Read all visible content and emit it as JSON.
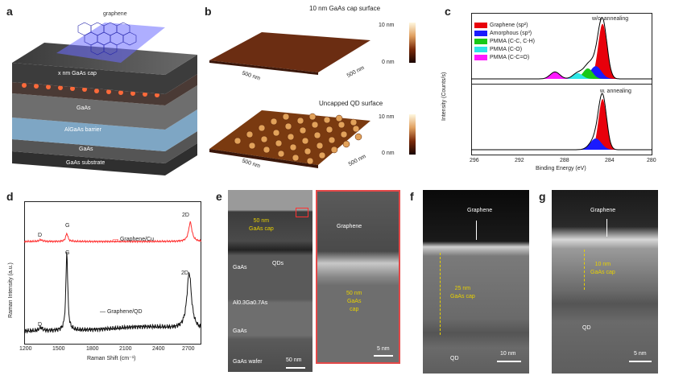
{
  "panels": {
    "a": {
      "label": "a",
      "graphene": "graphene",
      "layers": [
        "x nm GaAs cap",
        "GaAs",
        "AlGaAs barrier",
        "GaAs",
        "GaAs substrate"
      ]
    },
    "b": {
      "label": "b",
      "top_title": "10 nm GaAs cap surface",
      "bottom_title": "Uncapped QD surface",
      "top_scale_max": "10 nm",
      "top_scale_min": "0 nm",
      "bottom_scale_max": "10 nm",
      "bottom_scale_min": "0 nm",
      "axis_label": "500 nm"
    },
    "c": {
      "label": "c",
      "top_title": "w/o. annealing",
      "bottom_title": "w. annealing",
      "ylabel": "Intensity (Counts/s)",
      "xlabel": "Binding Energy (eV)",
      "legend": [
        {
          "name": "Graphene (sp²)",
          "color": "#e8000b"
        },
        {
          "name": "Amorphous (sp³)",
          "color": "#1a1aff"
        },
        {
          "name": "PMMA (C-C, C-H)",
          "color": "#18c918"
        },
        {
          "name": "PMMA (C-O)",
          "color": "#2ee6e6"
        },
        {
          "name": "PMMA (C-C=O)",
          "color": "#ff1aff"
        }
      ]
    },
    "d": {
      "label": "d",
      "ylabel": "Raman Intensity (a.u.)",
      "xlabel": "Raman Shift (cm⁻¹)",
      "series_top": "Graphene/Cu",
      "series_bottom": "Graphene/QD",
      "peak_D": "D",
      "peak_G": "G",
      "peak_2D": "2D"
    },
    "e": {
      "label": "e",
      "cap": "50 nm GaAs cap",
      "cap_l1": "50 nm",
      "cap_l2": "GaAs cap",
      "qds": "QDs",
      "gaas": "GaAs",
      "algaas": "Al0.3Ga0.7As",
      "gaas2": "GaAs",
      "wafer": "GaAs wafer",
      "scale": "50 nm",
      "inset_graphene": "Graphene",
      "inset_cap_l1": "50 nm",
      "inset_cap_l2": "GaAs",
      "inset_cap_l3": "cap",
      "inset_scale": "5 nm"
    },
    "f": {
      "label": "f",
      "graphene": "Graphene",
      "cap_l1": "25 nm",
      "cap_l2": "GaAs cap",
      "qd": "QD",
      "scale": "10 nm"
    },
    "g": {
      "label": "g",
      "graphene": "Graphene",
      "cap_l1": "10 nm",
      "cap_l2": "GaAs cap",
      "qd": "QD",
      "scale": "5 nm"
    }
  },
  "chart_data": [
    {
      "type": "area",
      "title": "w/o. annealing",
      "xlabel": "Binding Energy (eV)",
      "ylabel": "Intensity (Counts/s)",
      "xlim": [
        296,
        280
      ],
      "x_ticks": [
        296,
        292,
        288,
        284,
        280
      ],
      "series": [
        {
          "name": "Graphene (sp²)",
          "peak": 284.4
        },
        {
          "name": "Amorphous (sp³)",
          "peak": 285.0
        },
        {
          "name": "PMMA (C-C, C-H)",
          "peak": 285.6
        },
        {
          "name": "PMMA (C-O)",
          "peak": 286.6
        },
        {
          "name": "PMMA (C-C=O)",
          "peak": 288.5
        }
      ]
    },
    {
      "type": "area",
      "title": "w. annealing",
      "xlabel": "Binding Energy (eV)",
      "xlim": [
        296,
        280
      ],
      "series": [
        {
          "name": "Graphene (sp²)",
          "peak": 284.4
        },
        {
          "name": "Amorphous (sp³)",
          "peak": 285.0
        }
      ]
    },
    {
      "type": "line",
      "xlabel": "Raman Shift (cm⁻¹)",
      "ylabel": "Raman Intensity (a.u.)",
      "xlim": [
        1200,
        2800
      ],
      "x_ticks": [
        1200,
        1500,
        1800,
        2100,
        2400,
        2700
      ],
      "series": [
        {
          "name": "Graphene/Cu",
          "peaks": {
            "D": 1350,
            "G": 1585,
            "2D": 2700
          }
        },
        {
          "name": "Graphene/QD",
          "peaks": {
            "D": 1350,
            "G": 1585,
            "2D": 2690
          }
        }
      ]
    }
  ]
}
